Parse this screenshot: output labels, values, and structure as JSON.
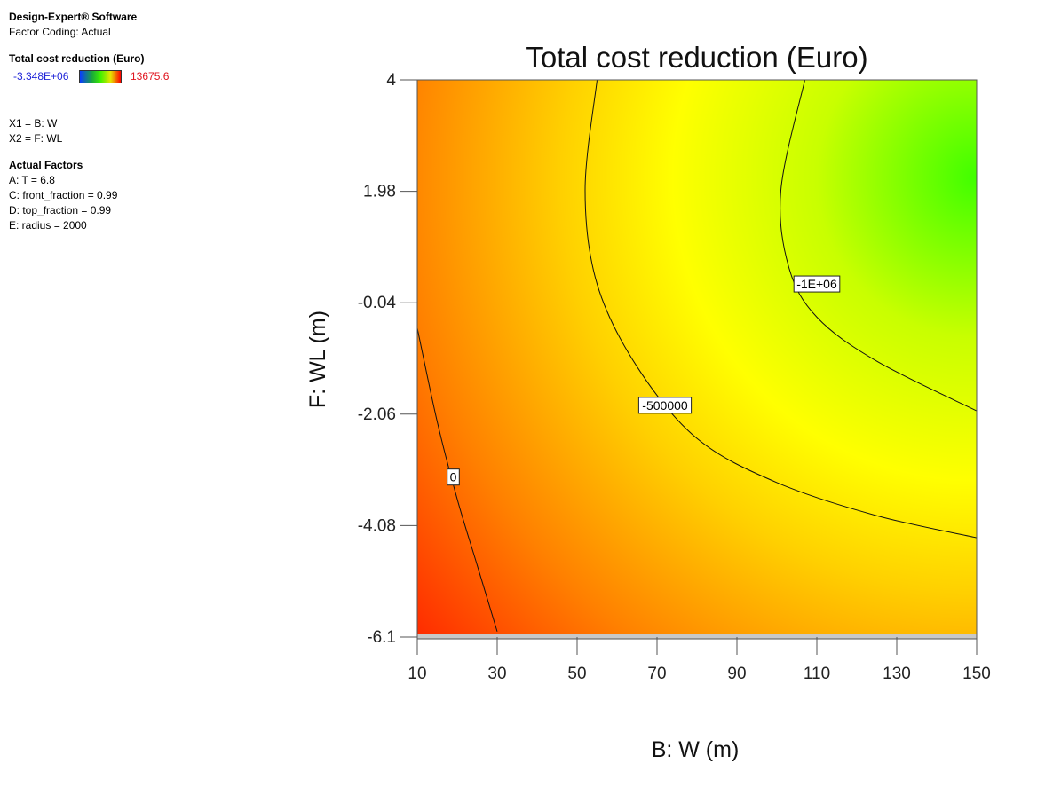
{
  "software": "Design-Expert® Software",
  "coding": "Factor Coding: Actual",
  "response_title": "Total cost reduction (Euro)",
  "legend": {
    "min": "-3.348E+06",
    "max": "13675.6",
    "min_color": "#1f24d8",
    "max_color": "#e0141e"
  },
  "x_assign": "X1 = B: W",
  "y_assign": "X2 = F: WL",
  "actual_factors": {
    "heading": "Actual Factors",
    "items": [
      "A: T = 6.8",
      "C: front_fraction = 0.99",
      "D: top_fraction = 0.99",
      "E: radius = 2000"
    ]
  },
  "chart_data": {
    "type": "contour",
    "title": "Total cost reduction (Euro)",
    "xlabel": "B: W (m)",
    "ylabel": "F: WL (m)",
    "xlim": [
      10,
      150
    ],
    "ylim": [
      -6.1,
      4
    ],
    "x_ticks": [
      "10",
      "30",
      "50",
      "70",
      "90",
      "110",
      "130",
      "150"
    ],
    "y_ticks": [
      "4",
      "1.98",
      "-0.04",
      "-2.06",
      "-4.08",
      "-6.1"
    ],
    "colormap": [
      "#ff0000",
      "#ff8000",
      "#ffd000",
      "#ffff00",
      "#c8ff00",
      "#40ff00"
    ],
    "contours": [
      {
        "level": "0",
        "points": [
          [
            10,
            -0.5
          ],
          [
            15,
            -2.2
          ],
          [
            20,
            -3.6
          ],
          [
            25,
            -4.8
          ],
          [
            30,
            -6.0
          ]
        ]
      },
      {
        "level": "-500000",
        "points": [
          [
            55,
            4.0
          ],
          [
            52,
            2.0
          ],
          [
            55,
            0.3
          ],
          [
            65,
            -1.2
          ],
          [
            80,
            -2.5
          ],
          [
            100,
            -3.3
          ],
          [
            125,
            -3.9
          ],
          [
            150,
            -4.3
          ]
        ]
      },
      {
        "level": "-1E+06",
        "points": [
          [
            107,
            4.0
          ],
          [
            101,
            2.0
          ],
          [
            103,
            0.6
          ],
          [
            110,
            -0.3
          ],
          [
            125,
            -1.1
          ],
          [
            150,
            -2.0
          ]
        ]
      }
    ],
    "contour_labels": [
      {
        "text": "0",
        "x": 19,
        "y": -3.2
      },
      {
        "text": "-500000",
        "x": 72,
        "y": -1.9
      },
      {
        "text": "-1E+06",
        "x": 110,
        "y": 0.3
      }
    ]
  }
}
